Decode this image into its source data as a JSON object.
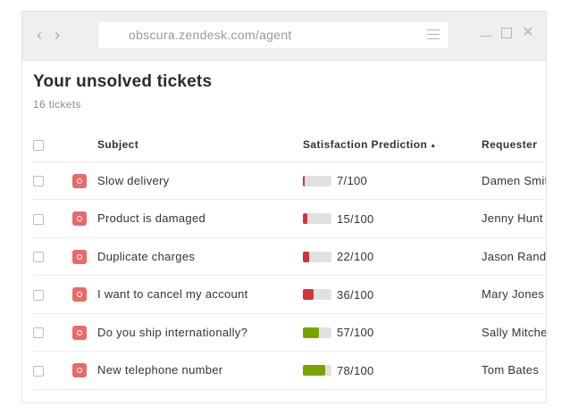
{
  "browser": {
    "url": "obscura.zendesk.com/agent"
  },
  "page": {
    "title": "Your unsolved tickets",
    "subtitle": "16 tickets"
  },
  "table": {
    "columns": {
      "subject": "Subject",
      "satisfaction": "Satisfaction Prediction",
      "sort_indicator": "▲",
      "requester": "Requester"
    },
    "rows": [
      {
        "subject": "Slow delivery",
        "satisfaction_label": "7/100",
        "satisfaction": 7,
        "requester": "Damen Smit",
        "bar_color": "#d0343a"
      },
      {
        "subject": "Product is damaged",
        "satisfaction_label": "15/100",
        "satisfaction": 15,
        "requester": "Jenny Hunt",
        "bar_color": "#d0343a"
      },
      {
        "subject": "Duplicate charges",
        "satisfaction_label": "22/100",
        "satisfaction": 22,
        "requester": "Jason Randa",
        "bar_color": "#d0343a"
      },
      {
        "subject": "I want to cancel my account",
        "satisfaction_label": "36/100",
        "satisfaction": 36,
        "requester": "Mary Jones",
        "bar_color": "#d0343a"
      },
      {
        "subject": "Do you ship internationally?",
        "satisfaction_label": "57/100",
        "satisfaction": 57,
        "requester": "Sally Mitche",
        "bar_color": "#78a300"
      },
      {
        "subject": "New telephone number",
        "satisfaction_label": "78/100",
        "satisfaction": 78,
        "requester": "Tom Bates",
        "bar_color": "#78a300"
      }
    ]
  },
  "colors": {
    "priority_badge": "#e86a6a",
    "low_satisfaction": "#d0343a",
    "high_satisfaction": "#78a300"
  },
  "icons": {
    "back": "chevron-left-icon",
    "forward": "chevron-right-icon",
    "menu": "hamburger-icon",
    "minimize": "minimize-icon",
    "maximize": "maximize-icon",
    "close": "close-icon",
    "priority": "priority-badge-icon"
  }
}
